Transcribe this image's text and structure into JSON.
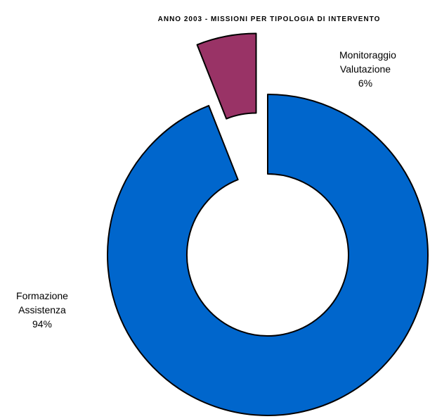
{
  "chart_data": {
    "type": "donut",
    "title": "ANNO 2003 - MISSIONI PER TIPOLOGIA DI INTERVENTO",
    "categories": [
      "Formazione Assistenza",
      "Monitoraggio Valutazione"
    ],
    "values": [
      94,
      6
    ],
    "value_labels": [
      "94%",
      "6%"
    ],
    "colors": [
      "#0066cc",
      "#993366"
    ],
    "exploded": [
      false,
      true
    ]
  }
}
